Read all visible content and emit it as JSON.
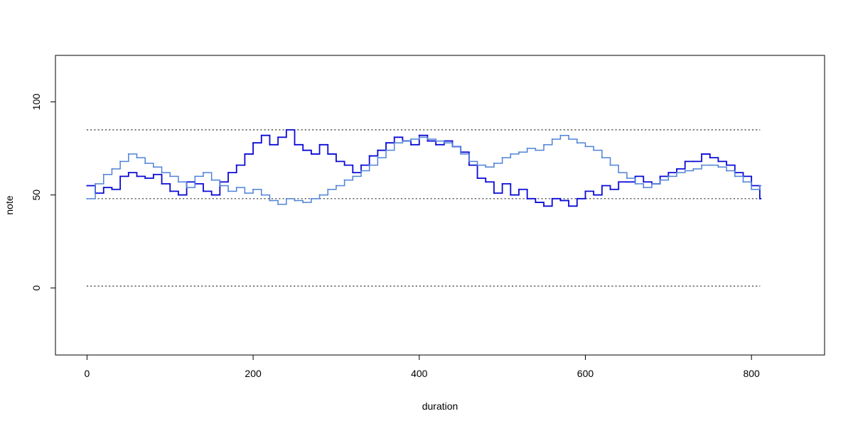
{
  "chart_data": {
    "type": "line",
    "title": "",
    "xlabel": "duration",
    "ylabel": "note",
    "xlim": [
      -38,
      888
    ],
    "ylim": [
      -36,
      125
    ],
    "x_ticks": [
      0,
      200,
      400,
      600,
      800
    ],
    "y_ticks": [
      0,
      50,
      100
    ],
    "x_tick_labels": [
      "0",
      "200",
      "400",
      "600",
      "800"
    ],
    "y_tick_labels": [
      "0",
      "50",
      "100"
    ],
    "grid": false,
    "legend": false,
    "reference_lines": [
      {
        "y": 85,
        "x": [
          0,
          810
        ],
        "style": "dotted",
        "color": "#333333"
      },
      {
        "y": 48,
        "x": [
          0,
          810
        ],
        "style": "dotted",
        "color": "#333333"
      },
      {
        "y": 1,
        "x": [
          0,
          810
        ],
        "style": "dotted",
        "color": "#333333"
      }
    ],
    "series": [
      {
        "color": "#0a0ad6",
        "style": "step",
        "x": [
          0,
          10,
          20,
          30,
          40,
          50,
          60,
          70,
          80,
          90,
          100,
          110,
          120,
          130,
          140,
          150,
          160,
          170,
          180,
          190,
          200,
          210,
          220,
          230,
          240,
          250,
          260,
          270,
          280,
          290,
          300,
          310,
          320,
          330,
          340,
          350,
          360,
          370,
          380,
          390,
          400,
          410,
          420,
          430,
          440,
          450,
          460,
          470,
          480,
          490,
          500,
          510,
          520,
          530,
          540,
          550,
          560,
          570,
          580,
          590,
          600,
          610,
          620,
          630,
          640,
          650,
          660,
          670,
          680,
          690,
          700,
          710,
          720,
          730,
          740,
          750,
          760,
          770,
          780,
          790,
          800,
          810
        ],
        "y": [
          55,
          51,
          54,
          53,
          60,
          62,
          60,
          59,
          61,
          56,
          52,
          50,
          57,
          56,
          52,
          50,
          57,
          62,
          66,
          72,
          78,
          82,
          77,
          81,
          85,
          77,
          74,
          72,
          77,
          72,
          68,
          66,
          62,
          66,
          71,
          74,
          78,
          81,
          79,
          77,
          82,
          79,
          77,
          79,
          76,
          73,
          66,
          59,
          57,
          51,
          56,
          50,
          53,
          48,
          46,
          44,
          48,
          47,
          44,
          48,
          52,
          50,
          55,
          53,
          57,
          57,
          60,
          57,
          56,
          60,
          62,
          64,
          68,
          68,
          72,
          70,
          68,
          66,
          62,
          60,
          55,
          48
        ]
      },
      {
        "color": "#4f82d8",
        "style": "step",
        "x": [
          0,
          10,
          20,
          30,
          40,
          50,
          60,
          70,
          80,
          90,
          100,
          110,
          120,
          130,
          140,
          150,
          160,
          170,
          180,
          190,
          200,
          210,
          220,
          230,
          240,
          250,
          260,
          270,
          280,
          290,
          300,
          310,
          320,
          330,
          340,
          350,
          360,
          370,
          380,
          390,
          400,
          410,
          420,
          430,
          440,
          450,
          460,
          470,
          480,
          490,
          500,
          510,
          520,
          530,
          540,
          550,
          560,
          570,
          580,
          590,
          600,
          610,
          620,
          630,
          640,
          650,
          660,
          670,
          680,
          690,
          700,
          710,
          720,
          730,
          740,
          750,
          760,
          770,
          780,
          790,
          800,
          810
        ],
        "y": [
          48,
          56,
          61,
          64,
          68,
          72,
          70,
          67,
          65,
          62,
          60,
          57,
          54,
          60,
          62,
          58,
          55,
          52,
          54,
          51,
          53,
          50,
          47,
          45,
          48,
          47,
          46,
          48,
          50,
          53,
          55,
          58,
          60,
          63,
          66,
          70,
          74,
          78,
          79,
          80,
          81,
          80,
          79,
          78,
          76,
          72,
          68,
          66,
          65,
          67,
          70,
          72,
          73,
          75,
          74,
          77,
          80,
          82,
          80,
          78,
          76,
          74,
          70,
          66,
          62,
          59,
          56,
          54,
          56,
          58,
          60,
          62,
          63,
          64,
          66,
          66,
          65,
          63,
          60,
          57,
          53,
          55
        ]
      }
    ]
  }
}
